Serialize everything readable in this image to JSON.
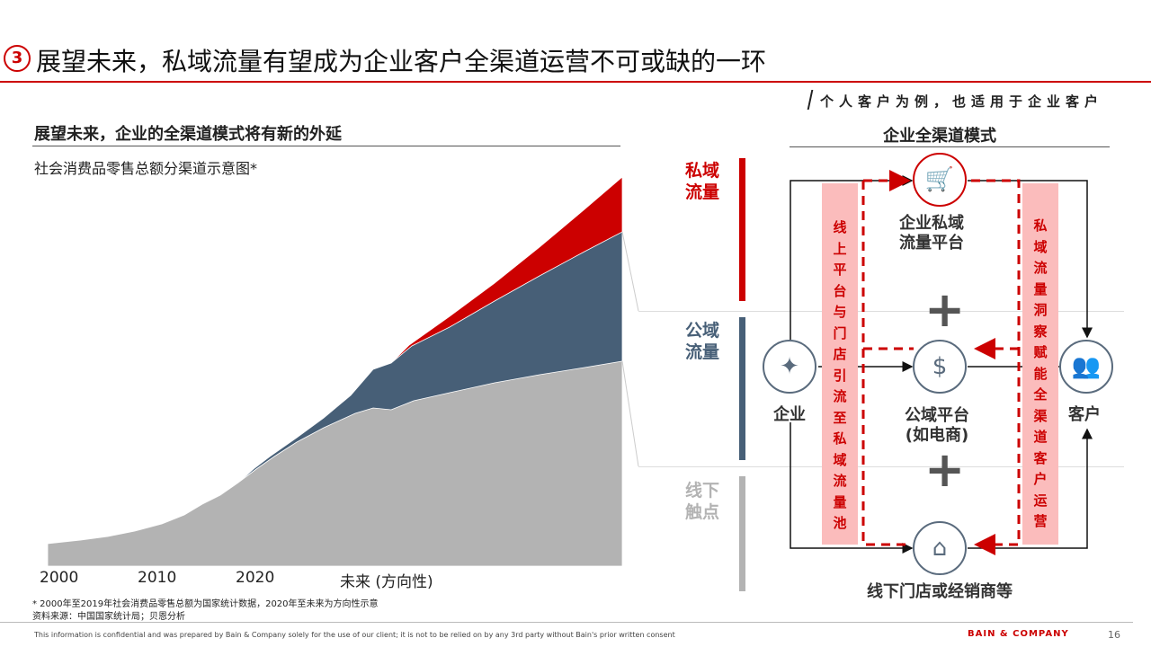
{
  "header": {
    "section_number": "3",
    "title": "展望未来，私域流量有望成为企业客户全渠道运营不可或缺的一环",
    "note": "个人客户为例，也适用于企业客户"
  },
  "left": {
    "heading": "展望未来，企业的全渠道模式将有新的外延",
    "subtitle": "社会消费品零售总额分渠道示意图*",
    "x_labels": [
      "2000",
      "2010",
      "2020",
      "未来 (方向性)"
    ],
    "footnote": "* 2000年至2019年社会消费品零售总额为国家统计数据，2020年至未来为方向性示意",
    "source": "资料来源：中国国家统计局；贝恩分析",
    "colors": {
      "private": "#cc0000",
      "public": "#475f77",
      "offline": "#b3b3b3"
    }
  },
  "right": {
    "heading": "企业全渠道模式",
    "side_labels": [
      {
        "text": "私域\n流量",
        "color": "#cc0000"
      },
      {
        "text": "公域\n流量",
        "color": "#475f77"
      },
      {
        "text": "线下\n触点",
        "color": "#b3b3b3"
      }
    ],
    "band_left": "线上平台与门店引流至私域流量池",
    "band_right": "私域流量洞察赋能全渠道客户运营",
    "nodes": {
      "enterprise": "企业",
      "private_platform": "企业私域\n流量平台",
      "public_platform": "公域平台\n(如电商)",
      "offline": "线下门店或经销商等",
      "customer": "客户"
    },
    "plus": "+"
  },
  "footer": {
    "confidential": "This information is confidential and was prepared by Bain & Company solely for the use of our client; it is not to be relied on by any 3rd party without Bain's prior written consent",
    "brand": "BAIN & COMPANY",
    "page": "16"
  }
}
